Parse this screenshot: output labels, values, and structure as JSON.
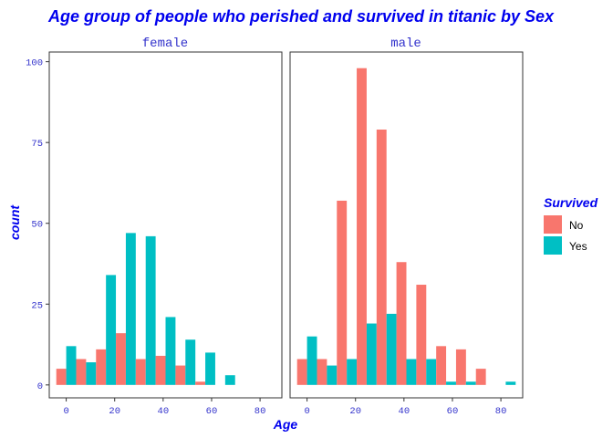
{
  "chart_data": {
    "type": "bar",
    "title": "Age group of people who perished and survived in titanic by Sex",
    "xlabel": "Age",
    "ylabel": "count",
    "xlim": [
      -7,
      89
    ],
    "ylim": [
      -4,
      103
    ],
    "x_ticks": [
      0,
      20,
      40,
      60,
      80
    ],
    "y_ticks": [
      0,
      25,
      50,
      75,
      100
    ],
    "bin_width": 8.2,
    "bin_centers": [
      0,
      8.2,
      16.4,
      24.6,
      32.8,
      41,
      49.2,
      57.4,
      65.6,
      73.8,
      82
    ],
    "legend": {
      "title": "Survived",
      "placement": "right"
    },
    "series": [
      {
        "name": "No",
        "color": "#f8766d"
      },
      {
        "name": "Yes",
        "color": "#00bfc4"
      }
    ],
    "facets": [
      {
        "label": "female",
        "no": [
          5,
          8,
          11,
          16,
          8,
          9,
          6,
          1,
          0,
          0,
          0
        ],
        "yes": [
          12,
          7,
          34,
          47,
          46,
          21,
          14,
          10,
          3,
          0,
          0
        ]
      },
      {
        "label": "male",
        "no": [
          8,
          8,
          57,
          98,
          79,
          38,
          31,
          12,
          11,
          5,
          0
        ],
        "yes": [
          15,
          6,
          8,
          19,
          22,
          8,
          8,
          1,
          1,
          0,
          1
        ]
      }
    ]
  }
}
